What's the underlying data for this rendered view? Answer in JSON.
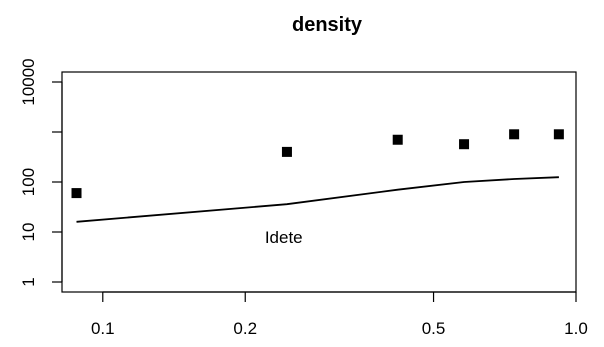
{
  "chart_data": {
    "type": "scatter",
    "title": "density",
    "xlabel": "",
    "ylabel": "",
    "x_scale": "log",
    "y_scale": "log",
    "xlim": [
      0.082,
      1.0
    ],
    "ylim": [
      1,
      10000
    ],
    "x_ticks": [
      {
        "value": 0.1,
        "label": "0.1"
      },
      {
        "value": 0.2,
        "label": "0.2"
      },
      {
        "value": 0.5,
        "label": "0.5"
      },
      {
        "value": 1.0,
        "label": "1.0"
      }
    ],
    "y_ticks": [
      {
        "value": 1,
        "label": "1"
      },
      {
        "value": 10,
        "label": "10"
      },
      {
        "value": 100,
        "label": "100"
      },
      {
        "value": 10000,
        "label": "10000"
      }
    ],
    "series": [
      {
        "kind": "points",
        "marker": "square",
        "x": [
          0.088,
          0.245,
          0.42,
          0.58,
          0.74,
          0.92
        ],
        "y": [
          60,
          400,
          700,
          570,
          900,
          900
        ]
      },
      {
        "kind": "line",
        "x": [
          0.088,
          0.245,
          0.42,
          0.58,
          0.74,
          0.92
        ],
        "y": [
          16,
          36,
          70,
          100,
          115,
          125
        ]
      }
    ],
    "annotations": [
      {
        "text": "Idete",
        "x": 0.22,
        "y": 6
      }
    ],
    "grid": false,
    "legend": "none"
  }
}
